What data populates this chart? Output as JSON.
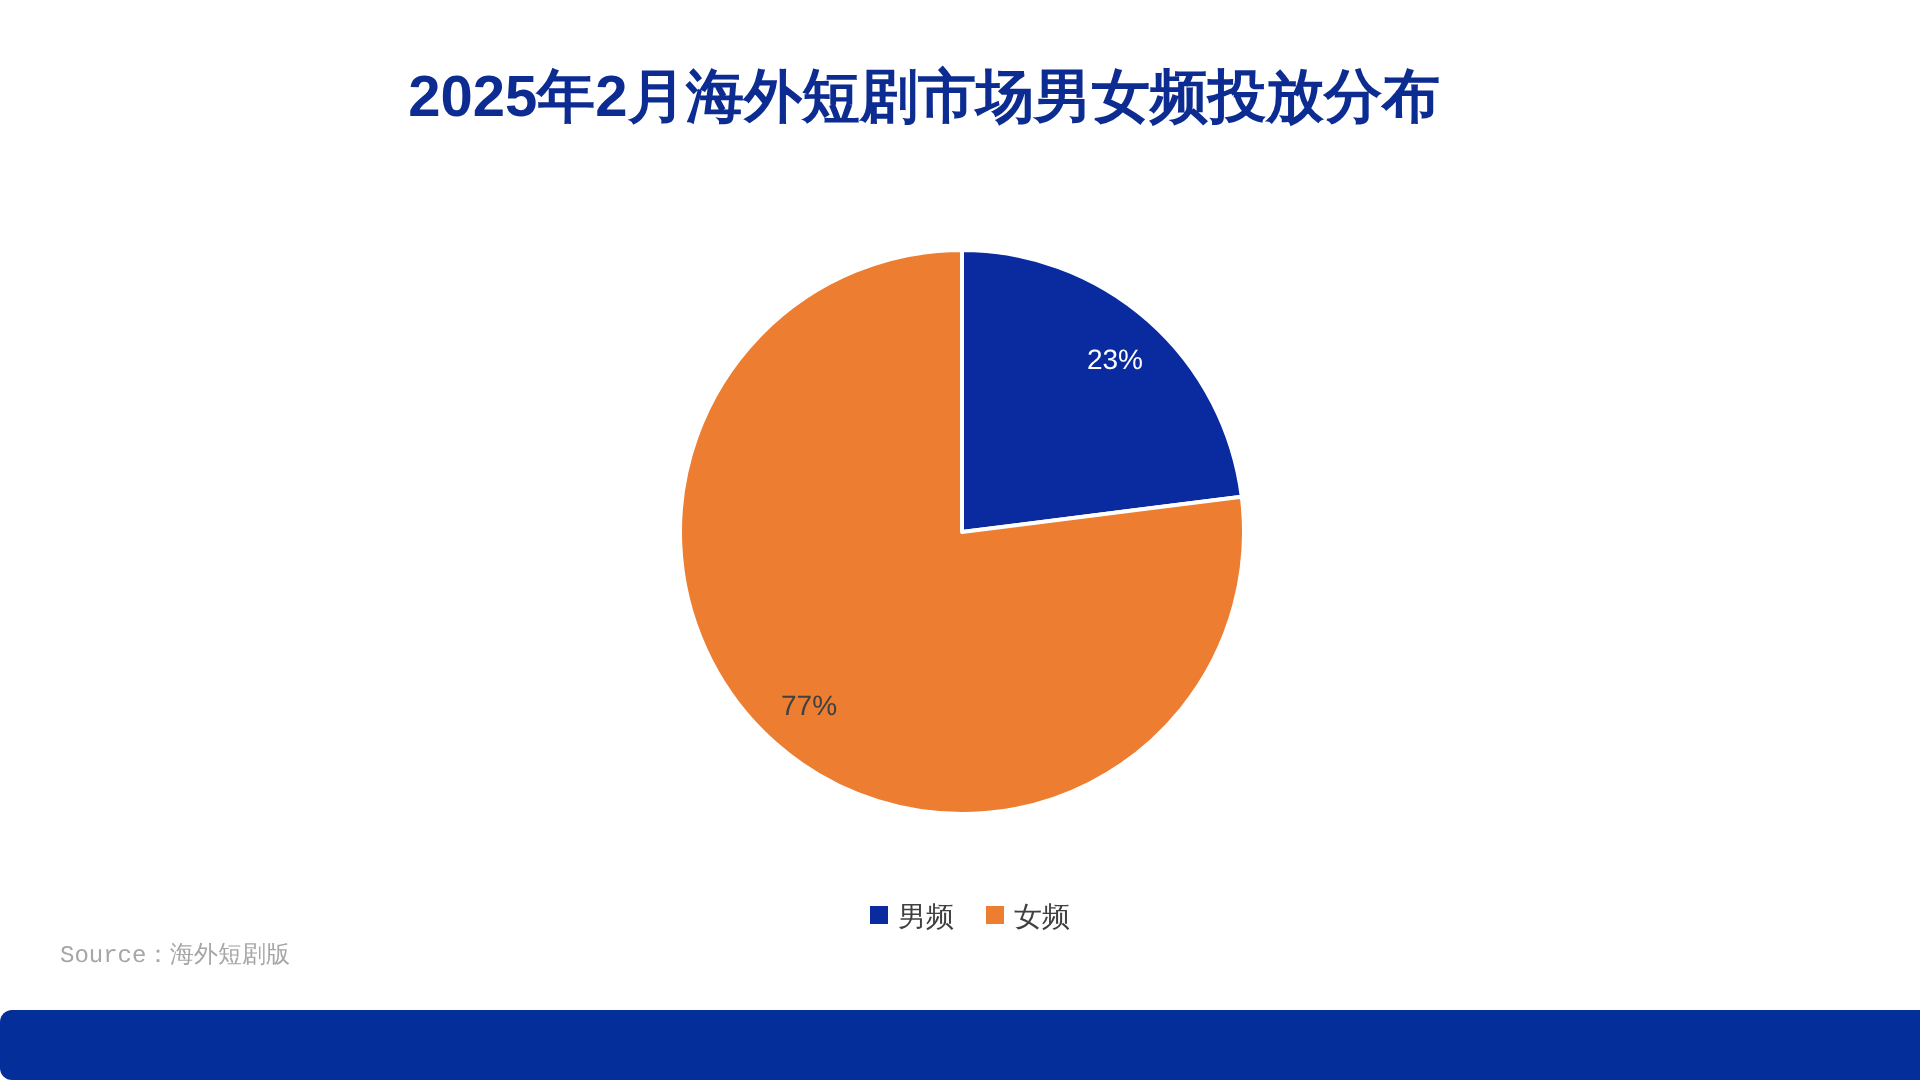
{
  "chart_data": {
    "type": "pie",
    "title": "2025年2月海外短剧市场男女频投放分布",
    "categories": [
      "男频",
      "女频"
    ],
    "values": [
      23,
      77
    ],
    "colors": [
      "#0a2aa0",
      "#ed7d31"
    ],
    "value_labels": [
      "23%",
      "77%"
    ],
    "legend": "bottom",
    "annotations": [
      "Source：海外短剧版"
    ]
  }
}
